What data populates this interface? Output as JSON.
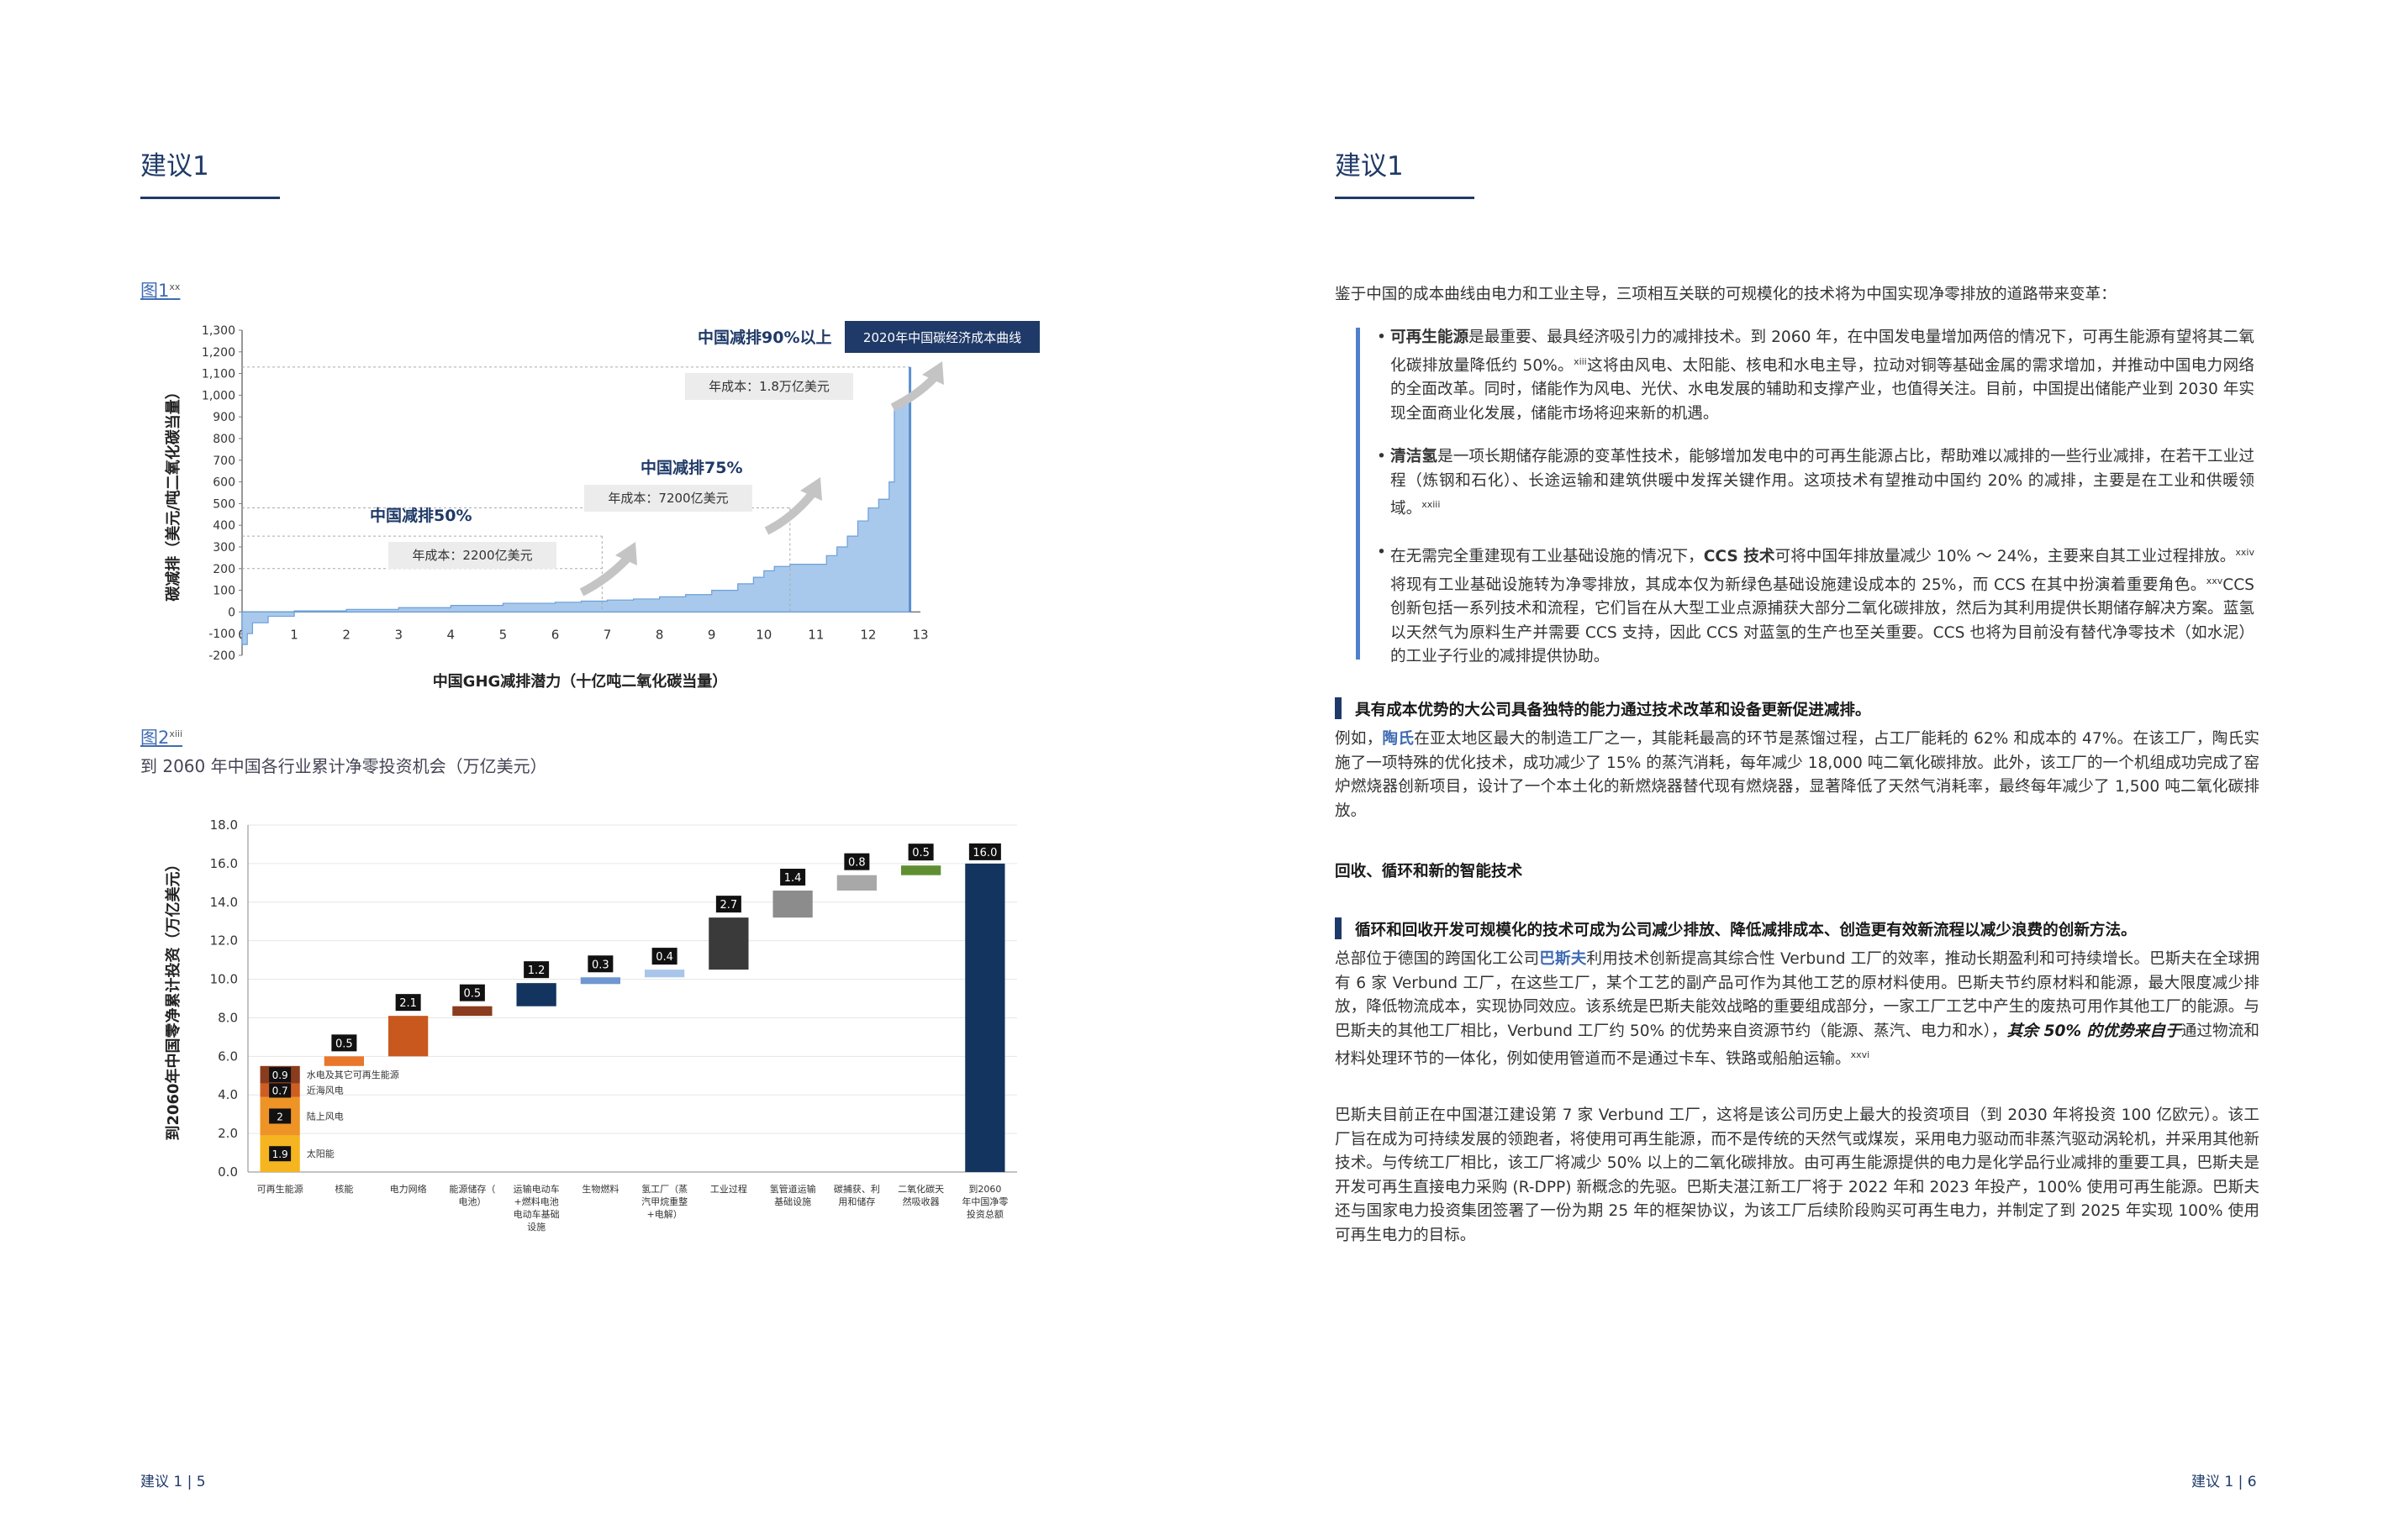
{
  "left": {
    "title": "建议1",
    "footer": "建议 1 | 5",
    "fig1": {
      "label": "图1",
      "sup": "xx"
    },
    "fig2": {
      "label": "图2",
      "sup": "xiii",
      "subtitle": "到 2060 年中国各行业累计净零投资机会（万亿美元）"
    }
  },
  "right": {
    "title": "建议1",
    "footer": "建议 1 | 6",
    "intro": "鉴于中国的成本曲线由电力和工业主导，三项相互关联的可规模化的技术将为中国实现净零排放的道路带来变革：",
    "bullets": [
      {
        "bold": "可再生能源",
        "text": "是最重要、最具经济吸引力的减排技术。到 2060 年，在中国发电量增加两倍的情况下，可再生能源有望将其二氧化碳排放量降低约 50%。",
        "sup": "xiii",
        "text2": "这将由风电、太阳能、核电和水电主导，拉动对铜等基础金属的需求增加，并推动中国电力网络的全面改革。同时，储能作为风电、光伏、水电发展的辅助和支撑产业，也值得关注。目前，中国提出储能产业到 2030 年实现全面商业化发展，储能市场将迎来新的机遇。"
      },
      {
        "bold": "清洁氢",
        "text": "是一项长期储存能源的变革性技术，能够增加发电中的可再生能源占比，帮助难以减排的一些行业减排，在若干工业过程（炼钢和石化）、长途运输和建筑供暖中发挥关键作用。这项技术有望推动中国约 20% 的减排，主要是在工业和供暖领域。",
        "sup": "xxiii",
        "text2": ""
      },
      {
        "pre": "在无需完全重建现有工业基础设施的情况下，",
        "bold": "CCS 技术",
        "text": "可将中国年排放量减少 10% ～ 24%，主要来自其工业过程排放。",
        "sup": "xxiv",
        "text2": "将现有工业基础设施转为净零排放，其成本仅为新绿色基础设施建设成本的 25%，而 CCS 在其中扮演着重要角色。",
        "sup2": "xxv",
        "text3": "CCS 创新包括一系列技术和流程，它们旨在从大型工业点源捕获大部分二氧化碳排放，然后为其利用提供长期储存解决方案。蓝氢以天然气为原料生产并需要 CCS 支持，因此 CCS 对蓝氢的生产也至关重要。CCS 也将为目前没有替代净零技术（如水泥）的工业子行业的减排提供协助。"
      }
    ],
    "section1_heading": "具有成本优势的大公司具备独特的能力通过技术改革和设备更新促进减排。",
    "section1_pre": "例如，",
    "section1_link": "陶氏",
    "section1_text": "在亚太地区最大的制造工厂之一，其能耗最高的环节是蒸馏过程，占工厂能耗的 62% 和成本的 47%。在该工厂，陶氏实施了一项特殊的优化技术，成功减少了 15% 的蒸汽消耗，每年减少 18,000 吨二氧化碳排放。此外，该工厂的一个机组成功完成了窑炉燃烧器创新项目，设计了一个本土化的新燃烧器替代现有燃烧器，显著降低了天然气消耗率，最终每年减少了 1,500 吨二氧化碳排放。",
    "subtitle2": "回收、循环和新的智能技术",
    "section2_heading": "循环和回收开发可规模化的技术可成为公司减少排放、降低减排成本、创造更有效新流程以减少浪费的创新方法。",
    "section2_pre": "总部位于德国的跨国化工公司",
    "section2_link": "巴斯夫",
    "section2_text": "利用技术创新提高其综合性 Verbund 工厂的效率，推动长期盈利和可持续增长。巴斯夫在全球拥有 6 家 Verbund 工厂，在这些工厂，某个工艺的副产品可作为其他工艺的原材料使用。巴斯夫节约原材料和能源，最大限度减少排放，降低物流成本，实现协同效应。该系统是巴斯夫能效战略的重要组成部分，一家工厂工艺中产生的废热可用作其他工厂的能源。与巴斯夫的其他工厂相比，Verbund 工厂约 50% 的优势来自资源节约（能源、蒸汽、电力和水），",
    "section2_em": "其余 50% 的优势来自于",
    "section2_text2": "通过物流和材料处理环节的一体化，例如使用管道而不是通过卡车、铁路或船舶运输。",
    "section2_sup": "xxvi",
    "section3_text": "巴斯夫目前正在中国湛江建设第 7 家 Verbund 工厂，这将是该公司历史上最大的投资项目（到 2030 年将投资 100 亿欧元）。该工厂旨在成为可持续发展的领跑者，将使用可再生能源，而不是传统的天然气或煤炭，采用电力驱动而非蒸汽驱动涡轮机，并采用其他新技术。与传统工厂相比，该工厂将减少 50% 以上的二氧化碳排放。由可再生能源提供的电力是化学品行业减排的重要工具，巴斯夫是开发可再生直接电力采购 (R-DPP) 新概念的先驱。巴斯夫湛江新工厂将于 2022 年和 2023 年投产，100% 使用可再生能源。巴斯夫还与国家电力投资集团签署了一份为期 25 年的框架协议，为该工厂后续阶段购买可再生电力，并制定了到 2025 年实现 100% 使用可再生电力的目标。"
  },
  "chart_data": [
    {
      "type": "area",
      "title": "",
      "xlabel": "中国GHG减排潜力（十亿吨二氧化碳当量）",
      "ylabel": "碳减排（美元/吨二氧化碳当量）",
      "xlim": [
        0,
        13
      ],
      "ylim": [
        -200,
        1300
      ],
      "x_ticks": [
        "0",
        "1",
        "2",
        "3",
        "4",
        "5",
        "6",
        "7",
        "8",
        "9",
        "10",
        "11",
        "12",
        "13"
      ],
      "y_ticks": [
        "-200",
        "-100",
        "0",
        "100",
        "200",
        "300",
        "400",
        "500",
        "600",
        "700",
        "800",
        "900",
        "1,000",
        "1,100",
        "1,200",
        "1,300"
      ],
      "series": [
        {
          "name": "",
          "x": [
            0.0,
            0.1,
            0.2,
            0.5,
            1.0,
            2.0,
            3.0,
            4.0,
            5.0,
            6.0,
            6.5,
            7.0,
            7.5,
            8.0,
            8.5,
            9.0,
            9.5,
            9.8,
            10.0,
            10.2,
            10.5,
            11.0,
            11.2,
            11.4,
            11.6,
            11.8,
            12.0,
            12.2,
            12.4,
            12.5,
            12.6,
            12.8
          ],
          "y": [
            -150,
            -100,
            -50,
            -20,
            5,
            12,
            20,
            30,
            40,
            45,
            50,
            55,
            60,
            70,
            80,
            100,
            130,
            160,
            190,
            210,
            220,
            220,
            260,
            300,
            350,
            420,
            480,
            520,
            600,
            960,
            980,
            1120
          ]
        }
      ],
      "annotations": [
        {
          "label": "中国减排50%",
          "cost_label": "年成本：2200亿美元"
        },
        {
          "label": "中国减排75%",
          "cost_label": "年成本：7200亿美元"
        },
        {
          "label": "中国减排90%以上",
          "cost_label": "年成本：1.8万亿美元"
        },
        {
          "label": "2020年中国碳经济成本曲线"
        }
      ]
    },
    {
      "type": "bar",
      "title": "",
      "ylabel": "到2060年中国零净累计投资（万亿美元）",
      "ylim": [
        0,
        18
      ],
      "y_ticks": [
        "0.0",
        "2.0",
        "4.0",
        "6.0",
        "8.0",
        "10.0",
        "12.0",
        "14.0",
        "16.0",
        "18.0"
      ],
      "categories": [
        "可再生能源",
        "核能",
        "电力网络",
        "能源储存（电池）",
        "运输电动车+燃料电池电动车基础设施",
        "生物燃料",
        "氢工厂（蒸汽甲烷重整+电解）",
        "工业过程",
        "氢管道运输基础设施",
        "碳捕获、利用和储存",
        "二氧化碳天然吸收器",
        "到2060年中国净零投资总额"
      ],
      "values": [
        5.5,
        0.5,
        2.1,
        0.5,
        1.2,
        0.3,
        0.4,
        2.7,
        1.4,
        0.8,
        0.5,
        16.0
      ],
      "value_labels": [
        "",
        "0.5",
        "2.1",
        "0.5",
        "1.2",
        "0.3",
        "0.4",
        "2.7",
        "1.4",
        "0.8",
        "0.5",
        "16.0"
      ],
      "bar_colors": [
        "#f2a92b",
        "#e8762b",
        "#c8581e",
        "#8b3c1e",
        "#12345e",
        "#6f97d0",
        "#a9c6ea",
        "#3a3a3a",
        "#8c8c8c",
        "#a8a8a8",
        "#5f8f32",
        "#12345e"
      ],
      "first_stack": [
        {
          "name": "太阳能",
          "value": 1.9,
          "color": "#f5b520"
        },
        {
          "name": "陆上风电",
          "value": 2.0,
          "color": "#ee9326"
        },
        {
          "name": "近海风电",
          "value": 0.7,
          "color": "#cf5e22"
        },
        {
          "name": "水电及其它可再生能源",
          "value": 0.9,
          "color": "#8a3c1f"
        }
      ]
    }
  ]
}
